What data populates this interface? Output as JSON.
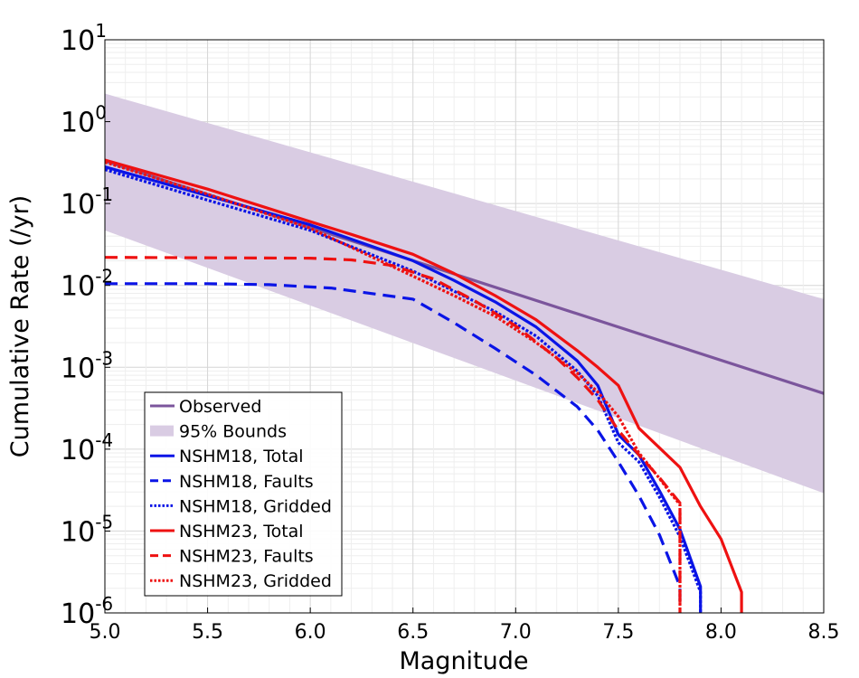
{
  "chart_data": {
    "type": "line",
    "title": "",
    "xlabel": "Magnitude",
    "ylabel": "Cumulative Rate (/yr)",
    "xlim": [
      5.0,
      8.5
    ],
    "ylim": [
      1e-06,
      10
    ],
    "yscale": "log",
    "grid": true,
    "legend_position": "bottom-left",
    "x_ticks": [
      "5.0",
      "5.5",
      "6.0",
      "6.5",
      "7.0",
      "7.5",
      "8.0",
      "8.5"
    ],
    "y_ticks": [
      {
        "base": "10",
        "exp": "1"
      },
      {
        "base": "10",
        "exp": "0"
      },
      {
        "base": "10",
        "exp": "-1"
      },
      {
        "base": "10",
        "exp": "-2"
      },
      {
        "base": "10",
        "exp": "-3"
      },
      {
        "base": "10",
        "exp": "-4"
      },
      {
        "base": "10",
        "exp": "-5"
      },
      {
        "base": "10",
        "exp": "-6"
      }
    ],
    "band": {
      "name": "95% Bounds",
      "color": "#d9cce3",
      "x": [
        5.0,
        8.5
      ],
      "upper": [
        2.2,
        0.0068
      ],
      "lower": [
        0.047,
        2.9e-05
      ]
    },
    "series": [
      {
        "name": "Observed",
        "color": "#7b559c",
        "dash": "solid",
        "x": [
          5.0,
          8.5
        ],
        "y": [
          0.33,
          0.00048
        ]
      },
      {
        "name": "NSHM18, Total",
        "color": "#0a14e6",
        "dash": "solid",
        "x": [
          5.0,
          5.5,
          6.0,
          6.5,
          6.7,
          6.9,
          7.1,
          7.3,
          7.4,
          7.5,
          7.6,
          7.7,
          7.8,
          7.9,
          7.9
        ],
        "y": [
          0.28,
          0.125,
          0.055,
          0.02,
          0.0115,
          0.0063,
          0.0031,
          0.0012,
          0.0006,
          0.00015,
          8.5e-05,
          3.1e-05,
          1.05e-05,
          2.1e-06,
          7.5e-07
        ]
      },
      {
        "name": "NSHM18, Faults",
        "color": "#0a14e6",
        "dash": "dashed",
        "x": [
          5.0,
          5.5,
          5.8,
          6.1,
          6.5,
          6.7,
          6.9,
          7.1,
          7.3,
          7.4,
          7.5,
          7.6,
          7.7,
          7.8,
          7.8
        ],
        "y": [
          0.0105,
          0.0105,
          0.0102,
          0.0093,
          0.0068,
          0.0035,
          0.0017,
          0.0008,
          0.00033,
          0.00017,
          7e-05,
          2.7e-05,
          9e-06,
          2.1e-06,
          1.2e-06
        ]
      },
      {
        "name": "NSHM18, Gridded",
        "color": "#0a14e6",
        "dash": "dotted",
        "x": [
          5.0,
          5.5,
          6.0,
          6.5,
          6.7,
          6.9,
          7.1,
          7.3,
          7.4,
          7.5,
          7.6,
          7.7,
          7.8,
          7.9,
          7.9
        ],
        "y": [
          0.26,
          0.11,
          0.047,
          0.015,
          0.0085,
          0.0048,
          0.0024,
          0.0009,
          0.00045,
          0.00012,
          7e-05,
          2.6e-05,
          8.5e-06,
          1.8e-06,
          7.5e-07
        ]
      },
      {
        "name": "NSHM23, Total",
        "color": "#ee1111",
        "dash": "solid",
        "x": [
          5.0,
          5.5,
          6.0,
          6.2,
          6.5,
          6.7,
          6.9,
          7.1,
          7.3,
          7.4,
          7.5,
          7.6,
          7.8,
          7.9,
          8.0,
          8.1,
          8.1
        ],
        "y": [
          0.34,
          0.15,
          0.06,
          0.042,
          0.024,
          0.014,
          0.0075,
          0.0038,
          0.0016,
          0.001,
          0.0006,
          0.00018,
          6e-05,
          2e-05,
          8e-06,
          1.8e-06,
          7.5e-07
        ]
      },
      {
        "name": "NSHM23, Faults",
        "color": "#ee1111",
        "dash": "dashed",
        "x": [
          5.0,
          6.0,
          6.2,
          6.4,
          6.6,
          6.8,
          7.0,
          7.2,
          7.3,
          7.4,
          7.5,
          7.6,
          7.7,
          7.8,
          7.8
        ],
        "y": [
          0.022,
          0.0215,
          0.0205,
          0.0175,
          0.012,
          0.0065,
          0.0032,
          0.0013,
          0.00075,
          0.0004,
          0.00017,
          8.5e-05,
          4.5e-05,
          2.2e-05,
          7.5e-07
        ]
      },
      {
        "name": "NSHM23, Gridded",
        "color": "#ee1111",
        "dash": "dotted",
        "x": [
          5.0,
          5.5,
          6.0,
          6.5,
          6.7,
          6.9,
          7.1,
          7.3,
          7.4,
          7.5,
          7.6,
          7.7,
          7.75,
          7.8,
          7.8
        ],
        "y": [
          0.32,
          0.13,
          0.05,
          0.013,
          0.0075,
          0.0042,
          0.002,
          0.00085,
          0.0005,
          0.00025,
          9e-05,
          4.4e-05,
          3e-05,
          2.1e-05,
          7.5e-07
        ]
      }
    ],
    "legend": [
      {
        "label": "Observed"
      },
      {
        "label": "95% Bounds"
      },
      {
        "label": "NSHM18, Total"
      },
      {
        "label": "NSHM18, Faults"
      },
      {
        "label": "NSHM18, Gridded"
      },
      {
        "label": "NSHM23, Total"
      },
      {
        "label": "NSHM23, Faults"
      },
      {
        "label": "NSHM23, Gridded"
      }
    ]
  }
}
